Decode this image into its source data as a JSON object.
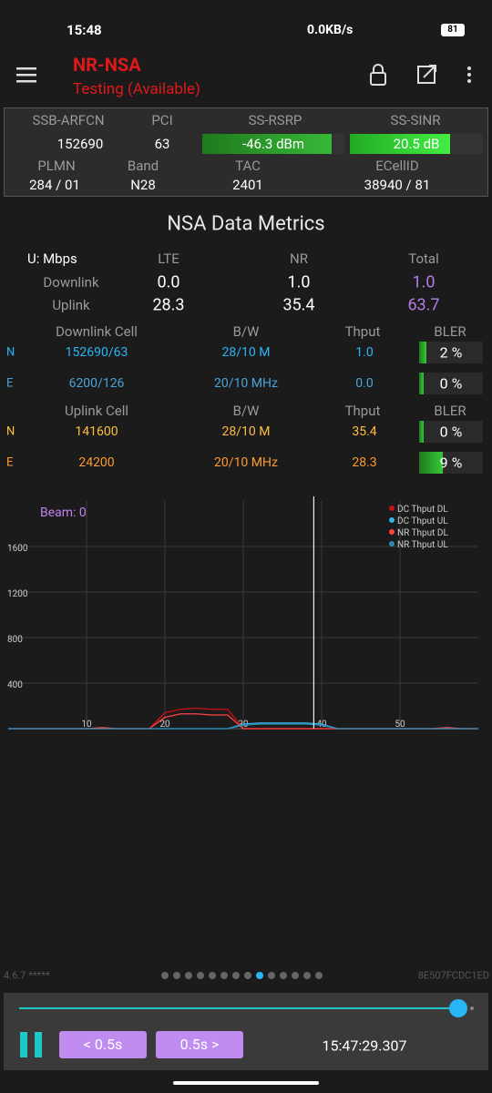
{
  "status_bar": {
    "time": "15:48",
    "speed": "0.0KB/s",
    "battery": "81"
  },
  "app_bar": {
    "title": "NR-NSA",
    "subtitle": "Testing (Available)"
  },
  "cell_info": {
    "headers": [
      "SSB-ARFCN",
      "PCI",
      "SS-RSRP",
      "SS-SINR"
    ],
    "values": [
      "152690",
      "63",
      "-46.3 dBm",
      "20.5 dB"
    ],
    "headers2": [
      "PLMN",
      "Band",
      "TAC",
      "ECellID"
    ],
    "values2": [
      "284 / 01",
      "N28",
      "2401",
      "38940 / 81"
    ]
  },
  "metrics": {
    "title": "NSA Data Metrics",
    "unit": "U: Mbps",
    "columns": [
      "LTE",
      "NR",
      "Total"
    ],
    "rows": [
      {
        "label": "Downlink",
        "values": [
          "0.0",
          "1.0",
          "1.0"
        ]
      },
      {
        "label": "Uplink",
        "values": [
          "28.3",
          "35.4",
          "63.7"
        ]
      }
    ]
  },
  "downlink_cells": {
    "headers": [
      "Downlink Cell",
      "B/W",
      "Thput",
      "BLER"
    ],
    "rows": [
      [
        "N",
        "152690/63",
        "28/10 M",
        "1.0",
        "2 %"
      ],
      [
        "E",
        "6200/126",
        "20/10 MHz",
        "0.0",
        "0 %"
      ]
    ]
  },
  "uplink_cells": {
    "headers": [
      "Uplink Cell",
      "B/W",
      "Thput",
      "BLER"
    ],
    "rows": [
      [
        "N",
        "141600",
        "28/10 M",
        "35.4",
        "0 %"
      ],
      [
        "E",
        "24200",
        "20/10 MHz",
        "28.3",
        "9 %"
      ]
    ]
  },
  "chart_data": {
    "type": "line",
    "annotation": "Beam: 0",
    "x": [
      0,
      2,
      4,
      6,
      8,
      10,
      12,
      14,
      16,
      18,
      20,
      22,
      24,
      26,
      28,
      30,
      32,
      34,
      36,
      38,
      40,
      42,
      44,
      46,
      48,
      50,
      52,
      54,
      56,
      58,
      60
    ],
    "series": [
      {
        "name": "DC Thput DL",
        "color": "#cc1010",
        "values": [
          0,
          0,
          0,
          0,
          0,
          0,
          0,
          0,
          0,
          0,
          140,
          170,
          180,
          170,
          170,
          0,
          0,
          0,
          0,
          0,
          0,
          0,
          0,
          0,
          0,
          0,
          0,
          0,
          0,
          0,
          0
        ]
      },
      {
        "name": "DC Thput UL",
        "color": "#33b5e5",
        "values": [
          0,
          0,
          0,
          0,
          0,
          0,
          0,
          0,
          0,
          0,
          0,
          0,
          0,
          0,
          0,
          40,
          50,
          50,
          50,
          50,
          40,
          0,
          0,
          0,
          0,
          0,
          0,
          0,
          0,
          0,
          0
        ]
      },
      {
        "name": "NR Thput DL",
        "color": "#ff4444",
        "values": [
          0,
          0,
          0,
          0,
          0,
          0,
          10,
          0,
          0,
          0,
          100,
          130,
          130,
          120,
          120,
          0,
          0,
          0,
          0,
          0,
          0,
          0,
          0,
          0,
          0,
          0,
          0,
          0,
          10,
          0,
          0
        ]
      },
      {
        "name": "NR Thput UL",
        "color": "#2a8ab5",
        "values": [
          0,
          0,
          0,
          0,
          0,
          0,
          0,
          0,
          0,
          0,
          0,
          0,
          0,
          0,
          0,
          30,
          40,
          40,
          40,
          40,
          30,
          0,
          0,
          0,
          0,
          0,
          0,
          0,
          0,
          0,
          0
        ]
      }
    ],
    "xlim": [
      0,
      60
    ],
    "ylim": [
      0,
      2000
    ],
    "xticks": [
      10,
      20,
      30,
      40,
      50
    ],
    "yticks": [
      400,
      800,
      1200,
      1600
    ],
    "grid": true,
    "cursor_x": 39,
    "legend": "upper right"
  },
  "footer": {
    "version": "4.6.7 *****",
    "device_id": "8E507FCDC1ED"
  },
  "controls": {
    "back": "< 0.5s",
    "forward": "0.5s >",
    "timestamp": "15:47:29.307"
  }
}
